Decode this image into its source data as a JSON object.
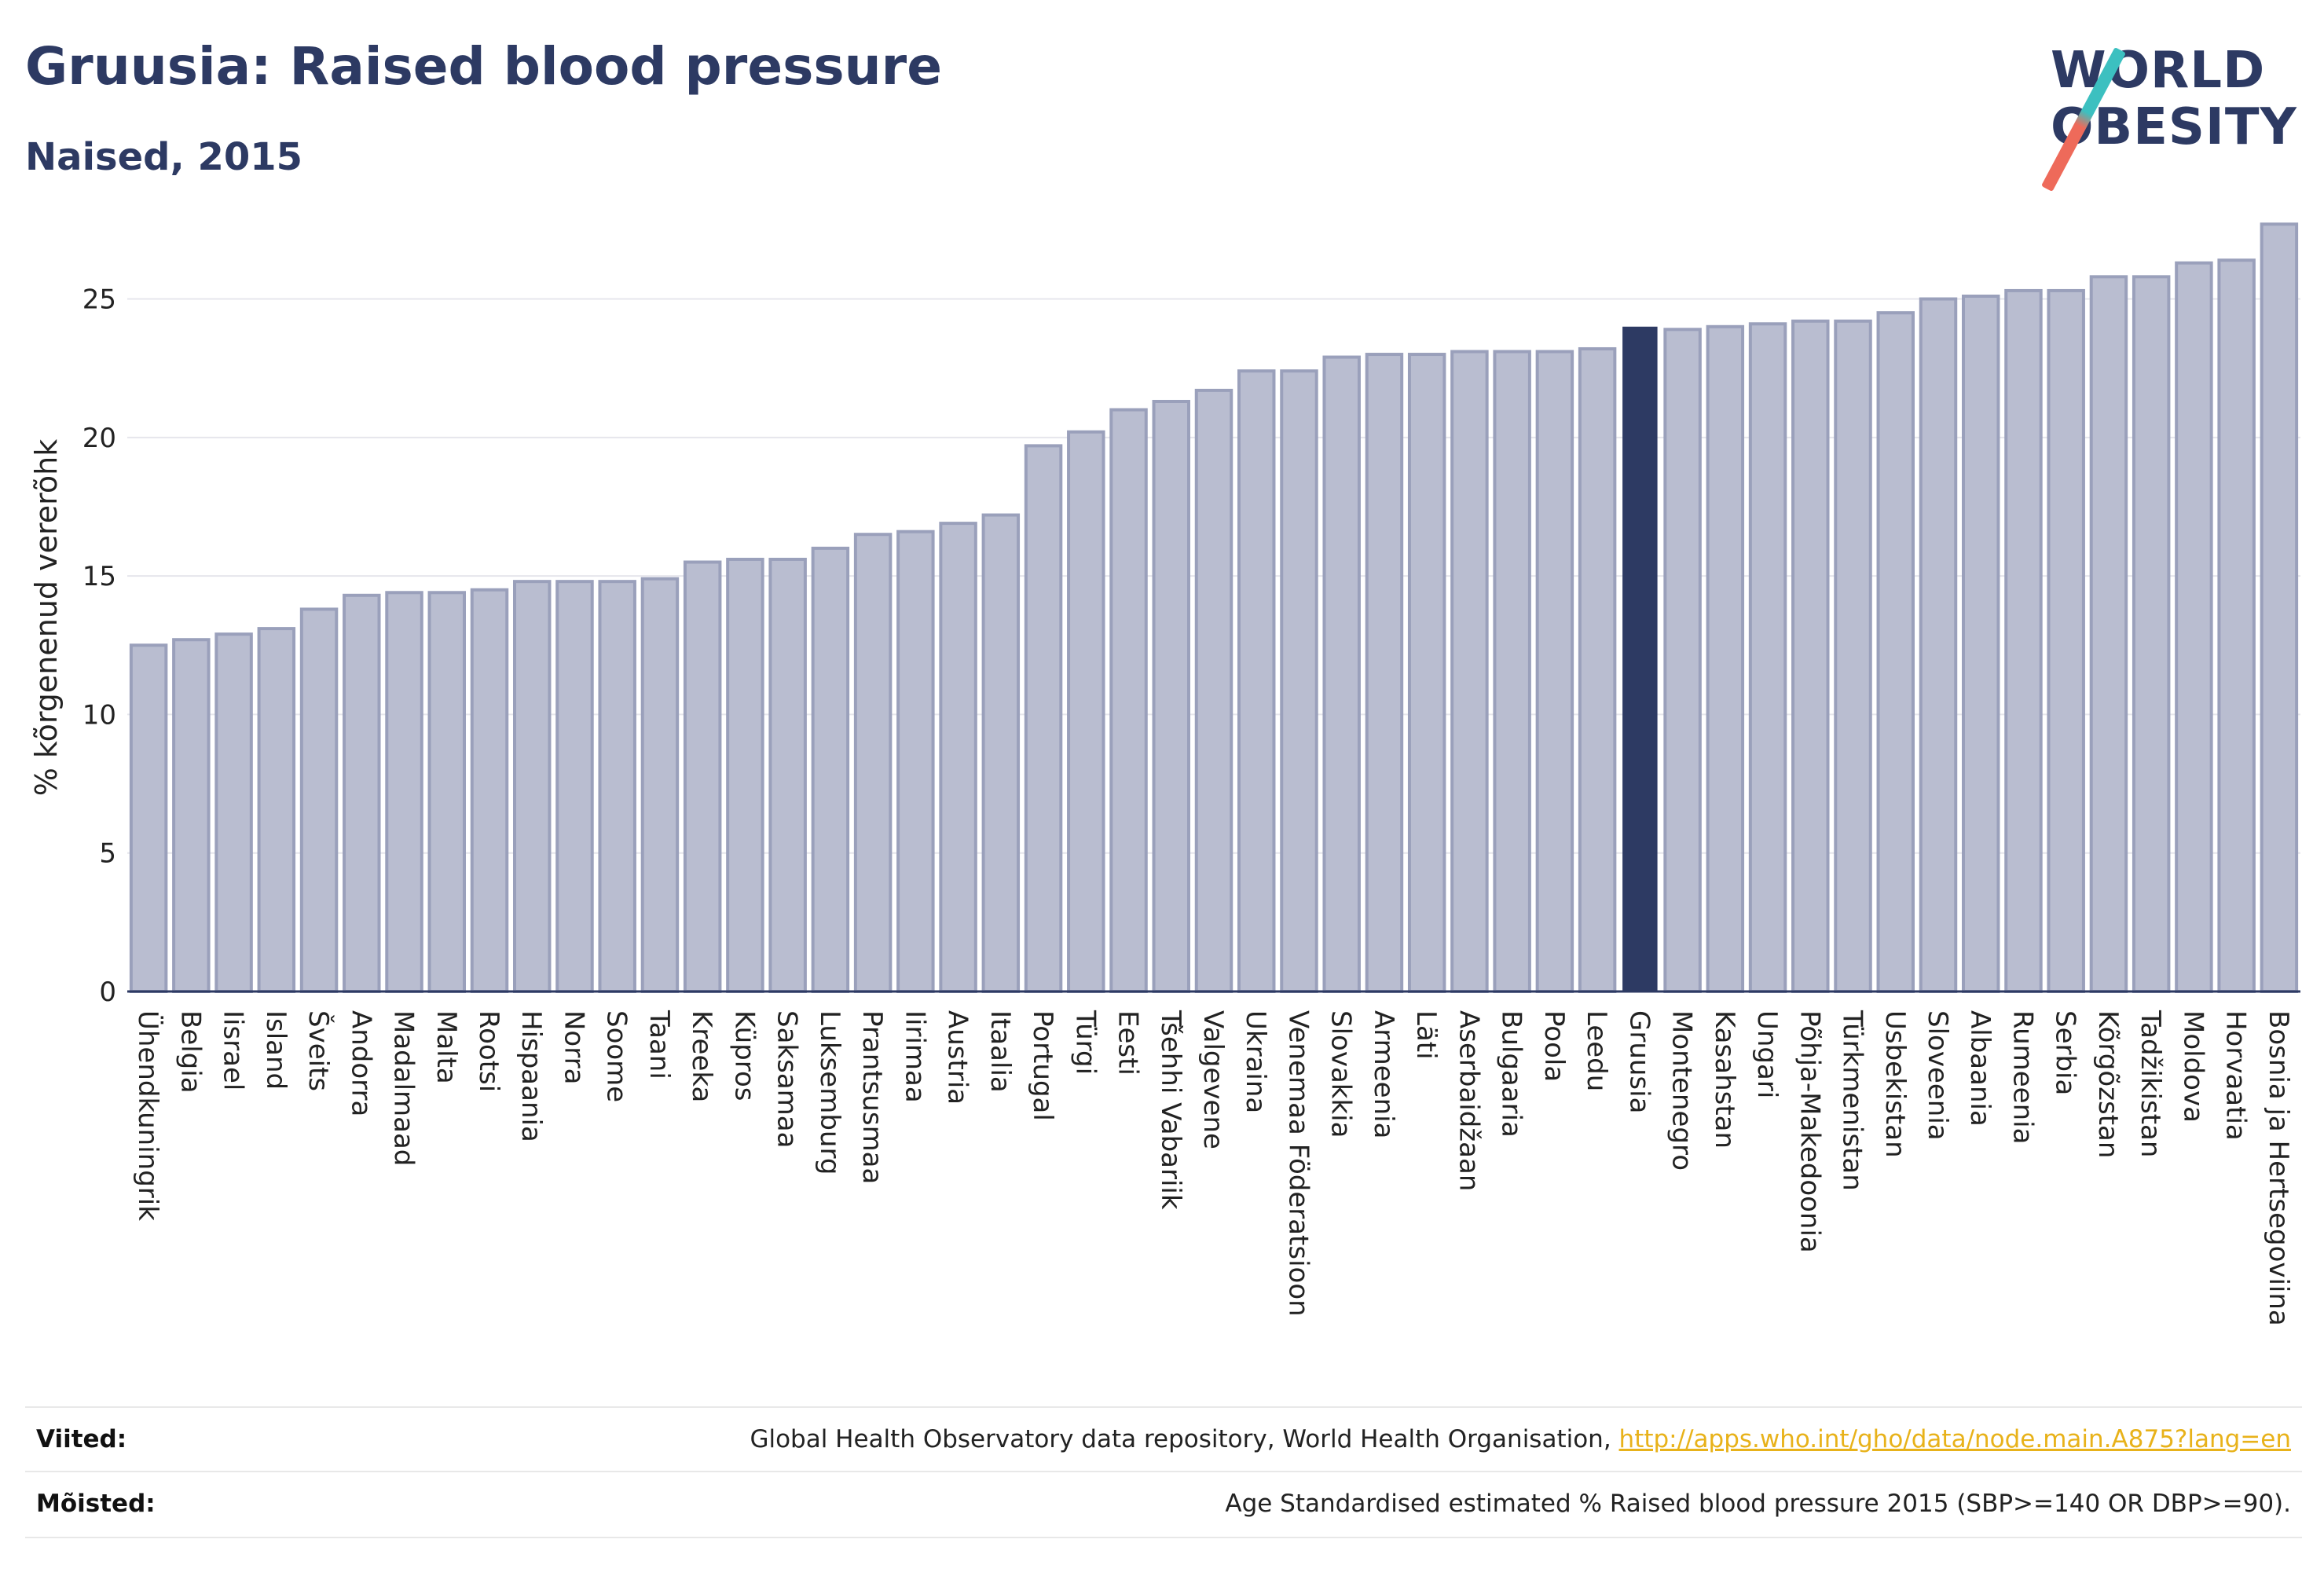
{
  "header": {
    "title": "Gruusia: Raised blood pressure",
    "subtitle": "Naised, 2015"
  },
  "logo": {
    "line1": "WORLD",
    "line2": "OBESITY"
  },
  "colors": {
    "bar": "#b9bdd0",
    "bar_stroke": "#9aa0bb",
    "highlight": "#2d3a63",
    "axis": "#2d3a63",
    "grid": "#e6e6ec",
    "link": "#e8b21a"
  },
  "chart_data": {
    "type": "bar",
    "ylabel": "% kõrgenenud vererõhk",
    "ylim": [
      0,
      27
    ],
    "yticks": [
      0,
      5,
      10,
      15,
      20,
      25
    ],
    "grid": true,
    "highlight": "Gruusia",
    "categories": [
      "Ühendkuningrik",
      "Belgia",
      "Iisrael",
      "Island",
      "Šveits",
      "Andorra",
      "Madalmaad",
      "Malta",
      "Rootsi",
      "Hispaania",
      "Norra",
      "Soome",
      "Taani",
      "Kreeka",
      "Küpros",
      "Saksamaa",
      "Luksemburg",
      "Prantsusmaa",
      "Iirimaa",
      "Austria",
      "Itaalia",
      "Portugal",
      "Türgi",
      "Eesti",
      "Tšehhi Vabariik",
      "Valgevene",
      "Ukraina",
      "Venemaa Föderatsioon",
      "Slovakkia",
      "Armeenia",
      "Läti",
      "Aserbaidžaan",
      "Bulgaaria",
      "Poola",
      "Leedu",
      "Gruusia",
      "Montenegro",
      "Kasahstan",
      "Ungari",
      "Põhja-Makedoonia",
      "Türkmenistan",
      "Usbekistan",
      "Sloveenia",
      "Albaania",
      "Rumeenia",
      "Serbia",
      "Kõrgõzstan",
      "Tadžikistan",
      "Moldova",
      "Horvaatia",
      "Bosnia ja Hertsegoviina"
    ],
    "values": [
      12.5,
      12.7,
      12.9,
      13.1,
      13.8,
      14.3,
      14.4,
      14.4,
      14.5,
      14.8,
      14.8,
      14.8,
      14.9,
      15.5,
      15.6,
      15.6,
      16.0,
      16.5,
      16.6,
      16.9,
      17.2,
      19.7,
      20.2,
      21.0,
      21.3,
      21.7,
      22.4,
      22.4,
      22.9,
      23.0,
      23.0,
      23.1,
      23.1,
      23.1,
      23.2,
      24.0,
      23.9,
      24.0,
      24.1,
      24.2,
      24.2,
      24.5,
      25.0,
      25.1,
      25.3,
      25.3,
      25.8,
      25.8,
      26.3,
      26.4,
      27.7
    ]
  },
  "footer": {
    "references_label": "Viited:",
    "references_text": "Global Health Observatory data repository, World Health Organisation,",
    "references_link": "http://apps.who.int/gho/data/node.main.A875?lang=en",
    "definitions_label": "Mõisted:",
    "definitions_text": "Age Standardised estimated % Raised blood pressure 2015 (SBP>=140 OR DBP>=90)."
  }
}
